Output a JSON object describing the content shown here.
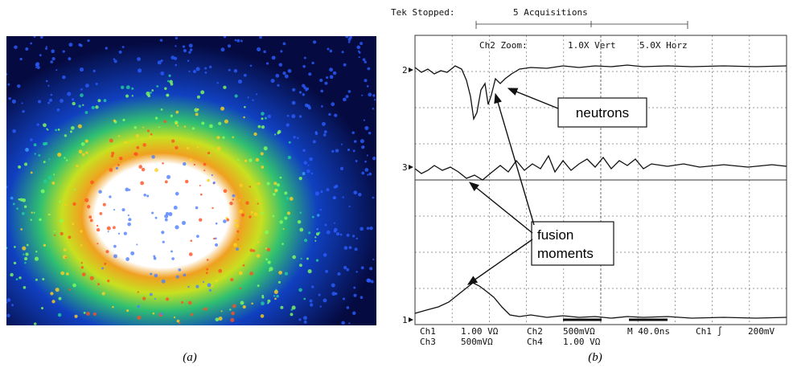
{
  "panel_a": {
    "caption": "(a)"
  },
  "panel_b": {
    "caption": "(b)",
    "header": {
      "status": "Tek Stopped:",
      "acquisitions": "5 Acquisitions",
      "zoom": "Ch2 Zoom:",
      "vert": "1.0X Vert",
      "horz": "5.0X Horz"
    },
    "trace_markers": [
      "2",
      "3",
      "1"
    ],
    "annotations": {
      "neutrons": "neutrons",
      "fusion": [
        "fusion",
        "moments"
      ]
    },
    "footer": {
      "row1": [
        "Ch1",
        "1.00 VΩ",
        "Ch2",
        "500mVΩ",
        "M 40.0ns",
        "Ch1 ∫",
        "200mV"
      ],
      "row2": [
        "Ch3",
        "500mVΩ",
        "Ch4",
        "1.00 VΩ"
      ]
    }
  }
}
